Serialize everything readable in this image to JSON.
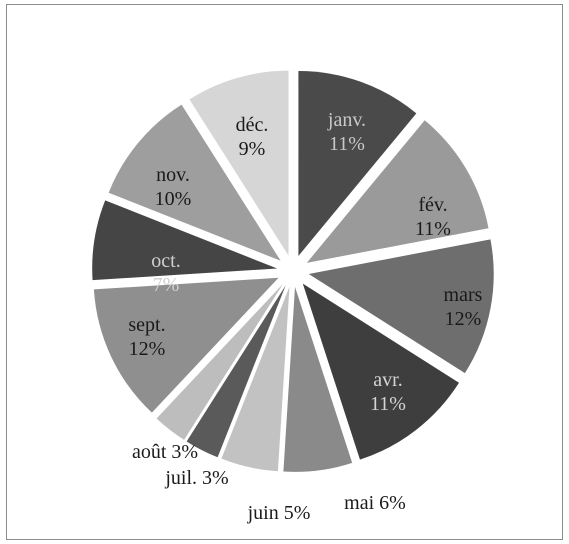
{
  "chart_data": {
    "type": "pie",
    "title": "",
    "legend": "none",
    "slices": [
      {
        "name": "janv.",
        "value": 11,
        "label": "11%",
        "color": "#4a4a4a",
        "text_color": "#c8c8c8"
      },
      {
        "name": "fév.",
        "value": 11,
        "label": "11%",
        "color": "#9a9a9a",
        "text_color": "#1a1a1a"
      },
      {
        "name": "mars",
        "value": 12,
        "label": "12%",
        "color": "#6e6e6e",
        "text_color": "#1a1a1a"
      },
      {
        "name": "avr.",
        "value": 11,
        "label": "11%",
        "color": "#3e3e3e",
        "text_color": "#d4d4d4"
      },
      {
        "name": "mai",
        "value": 6,
        "label": "6%",
        "color": "#8a8a8a",
        "text_color": "#1a1a1a"
      },
      {
        "name": "juin",
        "value": 5,
        "label": "5%",
        "color": "#c2c2c2",
        "text_color": "#1a1a1a"
      },
      {
        "name": "juil.",
        "value": 3,
        "label": "3%",
        "color": "#5a5a5a",
        "text_color": "#1a1a1a"
      },
      {
        "name": "août",
        "value": 3,
        "label": "3%",
        "color": "#bdbdbd",
        "text_color": "#1a1a1a"
      },
      {
        "name": "sept.",
        "value": 12,
        "label": "12%",
        "color": "#8f8f8f",
        "text_color": "#1a1a1a"
      },
      {
        "name": "oct.",
        "value": 7,
        "label": "7%",
        "color": "#454545",
        "text_color": "#d0d0d0"
      },
      {
        "name": "nov.",
        "value": 10,
        "label": "10%",
        "color": "#9e9e9e",
        "text_color": "#1a1a1a"
      },
      {
        "name": "déc.",
        "value": 9,
        "label": "9%",
        "color": "#d6d6d6",
        "text_color": "#1a1a1a"
      }
    ]
  }
}
